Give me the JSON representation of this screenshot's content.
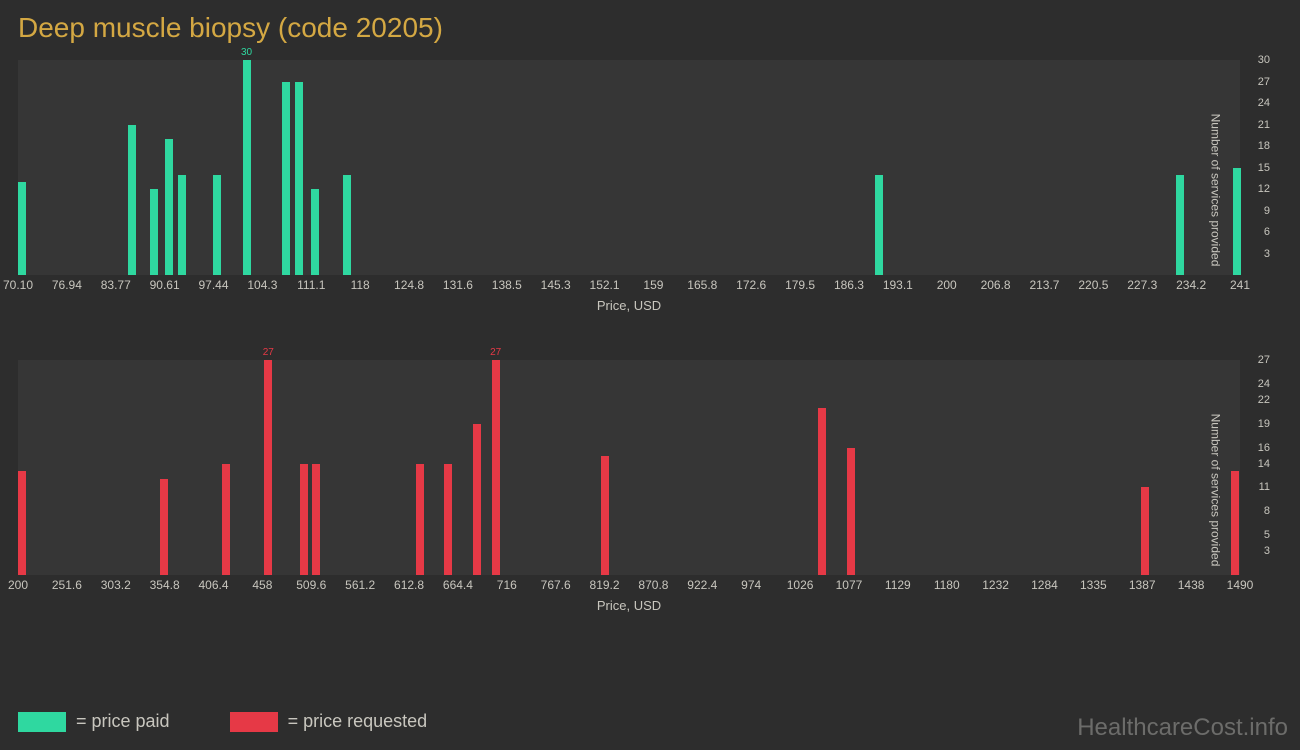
{
  "title": "Deep muscle biopsy (code 20205)",
  "watermark": "HealthcareCost.info",
  "axis_title_x": "Price, USD",
  "axis_title_y": "Number of services provided",
  "colors": {
    "background": "#2d2d2d",
    "plot_bg": "#363636",
    "title": "#d4a843",
    "text": "#c8c6be",
    "green": "#2fd8a0",
    "red": "#e63946",
    "watermark": "#6c6c6a"
  },
  "chart_top": {
    "type": "bar",
    "bar_color": "#2fd8a0",
    "xmin": 70.1,
    "xmax": 241,
    "ymax": 30,
    "xticks": [
      "70.10",
      "76.94",
      "83.77",
      "90.61",
      "97.44",
      "104.3",
      "111.1",
      "118",
      "124.8",
      "131.6",
      "138.5",
      "145.3",
      "152.1",
      "159",
      "165.8",
      "172.6",
      "179.5",
      "186.3",
      "193.1",
      "200",
      "206.8",
      "213.7",
      "220.5",
      "227.3",
      "234.2",
      "241"
    ],
    "yticks": [
      3,
      6,
      9,
      12,
      15,
      18,
      21,
      24,
      27,
      30
    ],
    "bars": [
      {
        "x": 70.1,
        "y": 13
      },
      {
        "x": 85.5,
        "y": 21
      },
      {
        "x": 88.5,
        "y": 12
      },
      {
        "x": 90.61,
        "y": 19
      },
      {
        "x": 92.5,
        "y": 14
      },
      {
        "x": 97.44,
        "y": 14
      },
      {
        "x": 101.5,
        "y": 30,
        "label": "30"
      },
      {
        "x": 107.0,
        "y": 27
      },
      {
        "x": 108.8,
        "y": 27
      },
      {
        "x": 111.1,
        "y": 12
      },
      {
        "x": 115.5,
        "y": 14
      },
      {
        "x": 190.0,
        "y": 14
      },
      {
        "x": 232.0,
        "y": 14
      },
      {
        "x": 240.0,
        "y": 15
      }
    ]
  },
  "chart_bottom": {
    "type": "bar",
    "bar_color": "#e63946",
    "xmin": 200,
    "xmax": 1490,
    "ymax": 27,
    "xticks": [
      "200",
      "251.6",
      "303.2",
      "354.8",
      "406.4",
      "458",
      "509.6",
      "561.2",
      "612.8",
      "664.4",
      "716",
      "767.6",
      "819.2",
      "870.8",
      "922.4",
      "974",
      "1026",
      "1077",
      "1129",
      "1180",
      "1232",
      "1284",
      "1335",
      "1387",
      "1438",
      "1490"
    ],
    "yticks": [
      3,
      5,
      8,
      11,
      14,
      16,
      19,
      22,
      24,
      27
    ],
    "bars": [
      {
        "x": 200,
        "y": 13
      },
      {
        "x": 350,
        "y": 12
      },
      {
        "x": 415,
        "y": 14
      },
      {
        "x": 460,
        "y": 27,
        "label": "27"
      },
      {
        "x": 498,
        "y": 14
      },
      {
        "x": 510,
        "y": 14
      },
      {
        "x": 620,
        "y": 14
      },
      {
        "x": 650,
        "y": 14
      },
      {
        "x": 680,
        "y": 19
      },
      {
        "x": 700,
        "y": 27,
        "label": "27"
      },
      {
        "x": 815,
        "y": 15
      },
      {
        "x": 1045,
        "y": 21
      },
      {
        "x": 1075,
        "y": 16
      },
      {
        "x": 1385,
        "y": 11
      },
      {
        "x": 1480,
        "y": 13
      }
    ]
  },
  "legend": [
    {
      "color": "#2fd8a0",
      "label": "= price paid"
    },
    {
      "color": "#e63946",
      "label": "= price requested"
    }
  ]
}
